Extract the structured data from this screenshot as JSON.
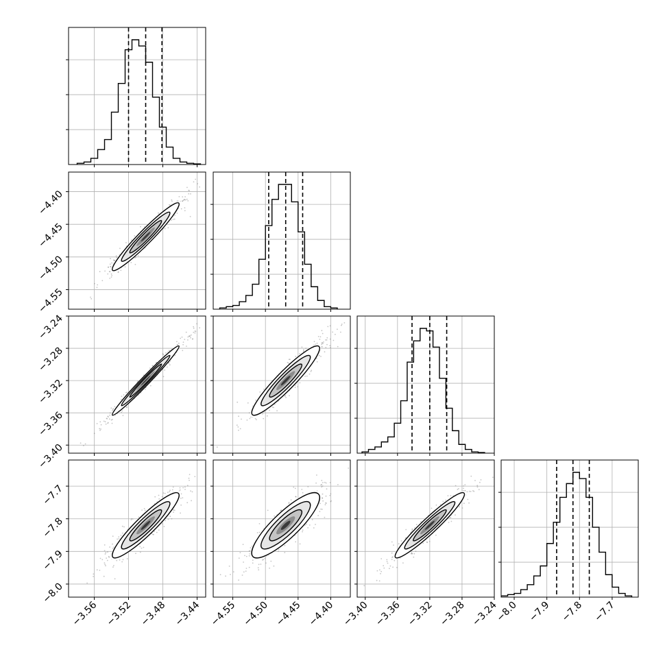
{
  "chart_data": {
    "type": "corner",
    "title": "",
    "parameters": [
      {
        "label": "",
        "range": [
          -3.59,
          -3.43
        ],
        "ticks": [
          "−3.56",
          "−3.52",
          "−3.48",
          "−3.44"
        ],
        "ticks_shown_on": "bottom"
      },
      {
        "label": "",
        "range": [
          -4.58,
          -4.37
        ],
        "ticks": [
          "−4.55",
          "−4.50",
          "−4.45",
          "−4.40"
        ],
        "ticks_shown_on": "both"
      },
      {
        "label": "",
        "range": [
          -3.41,
          -3.24
        ],
        "ticks": [
          "−3.40",
          "−3.36",
          "−3.32",
          "−3.28",
          "−3.24"
        ],
        "ticks_shown_on": "both"
      },
      {
        "label": "",
        "range": [
          -8.04,
          -7.62
        ],
        "ticks": [
          "−8.0",
          "−7.9",
          "−7.8",
          "−7.7"
        ],
        "ticks_shown_on": "both"
      }
    ],
    "quantiles": [
      [
        -3.52,
        -3.5,
        -3.481
      ],
      [
        -4.495,
        -4.469,
        -4.443
      ],
      [
        -3.342,
        -3.32,
        -3.299
      ],
      [
        -7.87,
        -7.82,
        -7.77
      ]
    ],
    "histograms": [
      {
        "edges": [
          -3.58,
          -3.572,
          -3.564,
          -3.556,
          -3.548,
          -3.54,
          -3.532,
          -3.524,
          -3.516,
          -3.508,
          -3.5,
          -3.492,
          -3.484,
          -3.476,
          -3.468,
          -3.46,
          -3.452,
          -3.444,
          -3.436
        ],
        "counts": [
          0.01,
          0.02,
          0.05,
          0.12,
          0.2,
          0.42,
          0.65,
          0.92,
          1.0,
          0.95,
          0.82,
          0.54,
          0.3,
          0.14,
          0.05,
          0.02,
          0.01,
          0.005
        ]
      },
      {
        "edges": [
          -4.57,
          -4.56,
          -4.55,
          -4.54,
          -4.53,
          -4.52,
          -4.51,
          -4.5,
          -4.49,
          -4.48,
          -4.47,
          -4.46,
          -4.45,
          -4.44,
          -4.43,
          -4.42,
          -4.41,
          -4.4,
          -4.39
        ],
        "counts": [
          0.01,
          0.02,
          0.03,
          0.06,
          0.11,
          0.2,
          0.4,
          0.67,
          0.88,
          1.0,
          1.0,
          0.86,
          0.62,
          0.36,
          0.18,
          0.07,
          0.02,
          0.01
        ]
      },
      {
        "edges": [
          -3.404,
          -3.396,
          -3.388,
          -3.38,
          -3.372,
          -3.364,
          -3.356,
          -3.348,
          -3.34,
          -3.332,
          -3.324,
          -3.316,
          -3.308,
          -3.3,
          -3.292,
          -3.284,
          -3.276,
          -3.268,
          -3.26,
          -3.252
        ],
        "counts": [
          0.01,
          0.03,
          0.05,
          0.09,
          0.13,
          0.24,
          0.42,
          0.73,
          0.9,
          1.0,
          0.98,
          0.85,
          0.6,
          0.36,
          0.18,
          0.07,
          0.03,
          0.01,
          0.005
        ]
      },
      {
        "edges": [
          -8.04,
          -8.02,
          -8.0,
          -7.98,
          -7.96,
          -7.94,
          -7.92,
          -7.9,
          -7.88,
          -7.86,
          -7.84,
          -7.82,
          -7.8,
          -7.78,
          -7.76,
          -7.74,
          -7.72,
          -7.7,
          -7.68,
          -7.66,
          -7.64
        ],
        "counts": [
          0.01,
          0.02,
          0.03,
          0.06,
          0.1,
          0.17,
          0.25,
          0.43,
          0.6,
          0.8,
          0.91,
          1.0,
          0.95,
          0.8,
          0.56,
          0.36,
          0.18,
          0.08,
          0.03,
          0.01
        ]
      }
    ],
    "pairs": [
      {
        "x": 0,
        "y": 1,
        "mean": [
          -3.5,
          -4.469
        ],
        "sd": [
          0.0195,
          0.026
        ],
        "corr": 0.96
      },
      {
        "x": 0,
        "y": 2,
        "mean": [
          -3.5,
          -3.32
        ],
        "sd": [
          0.0195,
          0.0215
        ],
        "corr": 0.985
      },
      {
        "x": 1,
        "y": 2,
        "mean": [
          -4.469,
          -3.32
        ],
        "sd": [
          0.026,
          0.0215
        ],
        "corr": 0.93
      },
      {
        "x": 0,
        "y": 3,
        "mean": [
          -3.5,
          -7.82
        ],
        "sd": [
          0.0195,
          0.05
        ],
        "corr": 0.92
      },
      {
        "x": 1,
        "y": 3,
        "mean": [
          -4.469,
          -7.82
        ],
        "sd": [
          0.026,
          0.05
        ],
        "corr": 0.85
      },
      {
        "x": 2,
        "y": 3,
        "mean": [
          -3.32,
          -7.82
        ],
        "sd": [
          0.0215,
          0.05
        ],
        "corr": 0.95
      }
    ],
    "contour_levels_sigma": [
      0.5,
      1.0,
      1.5,
      2.0
    ],
    "grid": true,
    "legend": "none",
    "colors": {
      "line": "#000000",
      "grid": "#b0b0b0",
      "points": "#7f7f7f"
    }
  }
}
